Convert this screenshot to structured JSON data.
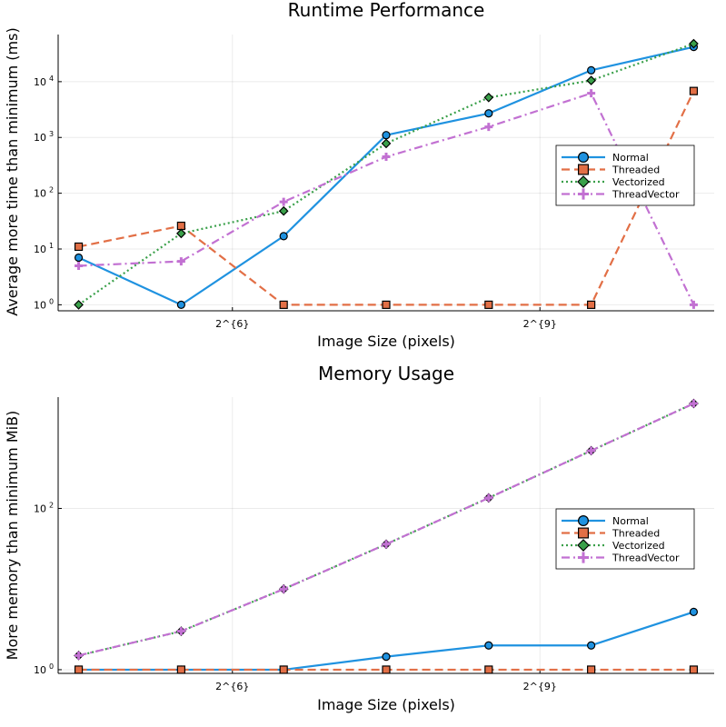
{
  "chart_data": [
    {
      "type": "line",
      "title": "Runtime Performance",
      "xlabel": "Image Size (pixels)",
      "ylabel": "Average more time than minimum (ms)",
      "x": [
        1,
        2,
        3,
        4,
        5,
        6,
        7
      ],
      "xticks": [
        {
          "x": 2.5,
          "label": "2^{6}"
        },
        {
          "x": 5.5,
          "label": "2^{9}"
        }
      ],
      "yscale": "log10",
      "yticks": [
        {
          "value": 1,
          "label": "10",
          "exp": "0"
        },
        {
          "value": 10,
          "label": "10",
          "exp": "1"
        },
        {
          "value": 100,
          "label": "10",
          "exp": "2"
        },
        {
          "value": 1000,
          "label": "10",
          "exp": "3"
        },
        {
          "value": 10000,
          "label": "10",
          "exp": "4"
        }
      ],
      "ylim": [
        0.78,
        70000
      ],
      "grid": true,
      "legend": "right",
      "series": [
        {
          "name": "Normal",
          "color": "#1f92e0",
          "dash": "solid",
          "marker": "circle",
          "values": [
            7,
            1,
            17,
            1100,
            2700,
            16000,
            42000
          ]
        },
        {
          "name": "Threaded",
          "color": "#e26f46",
          "dash": "dash",
          "marker": "square",
          "values": [
            11,
            26,
            1,
            1,
            1,
            1,
            6800
          ]
        },
        {
          "name": "Vectorized",
          "color": "#3aa04a",
          "dash": "dot",
          "marker": "diamond",
          "values": [
            1,
            19,
            48,
            780,
            5200,
            10500,
            48000
          ]
        },
        {
          "name": "ThreadVector",
          "color": "#c271d2",
          "dash": "dashdot",
          "marker": "cross",
          "values": [
            5,
            6,
            70,
            450,
            1550,
            6200,
            1
          ]
        }
      ]
    },
    {
      "type": "line",
      "title": "Memory Usage",
      "xlabel": "Image Size (pixels)",
      "ylabel": "More memory than minimum MiB)",
      "x": [
        1,
        2,
        3,
        4,
        5,
        6,
        7
      ],
      "xticks": [
        {
          "x": 2.5,
          "label": "2^{6}"
        },
        {
          "x": 5.5,
          "label": "2^{9}"
        }
      ],
      "yscale": "log10",
      "yticks": [
        {
          "value": 1,
          "label": "10",
          "exp": "0"
        },
        {
          "value": 100,
          "label": "10",
          "exp": "2"
        }
      ],
      "ylim": [
        0.9,
        2400
      ],
      "grid": true,
      "legend": "right",
      "series": [
        {
          "name": "Normal",
          "color": "#1f92e0",
          "dash": "solid",
          "marker": "circle",
          "values": [
            1,
            1,
            1,
            1.45,
            2,
            2,
            5.2
          ]
        },
        {
          "name": "Threaded",
          "color": "#e26f46",
          "dash": "dash",
          "marker": "square",
          "values": [
            1,
            1,
            1,
            1,
            1,
            1,
            1
          ]
        },
        {
          "name": "Vectorized",
          "color": "#3aa04a",
          "dash": "dot",
          "marker": "diamond",
          "values": [
            1.5,
            3,
            10,
            36,
            135,
            520,
            2000
          ]
        },
        {
          "name": "ThreadVector",
          "color": "#c271d2",
          "dash": "dashdot",
          "marker": "cross",
          "values": [
            1.5,
            3,
            10,
            36,
            135,
            520,
            2000
          ]
        }
      ]
    }
  ]
}
